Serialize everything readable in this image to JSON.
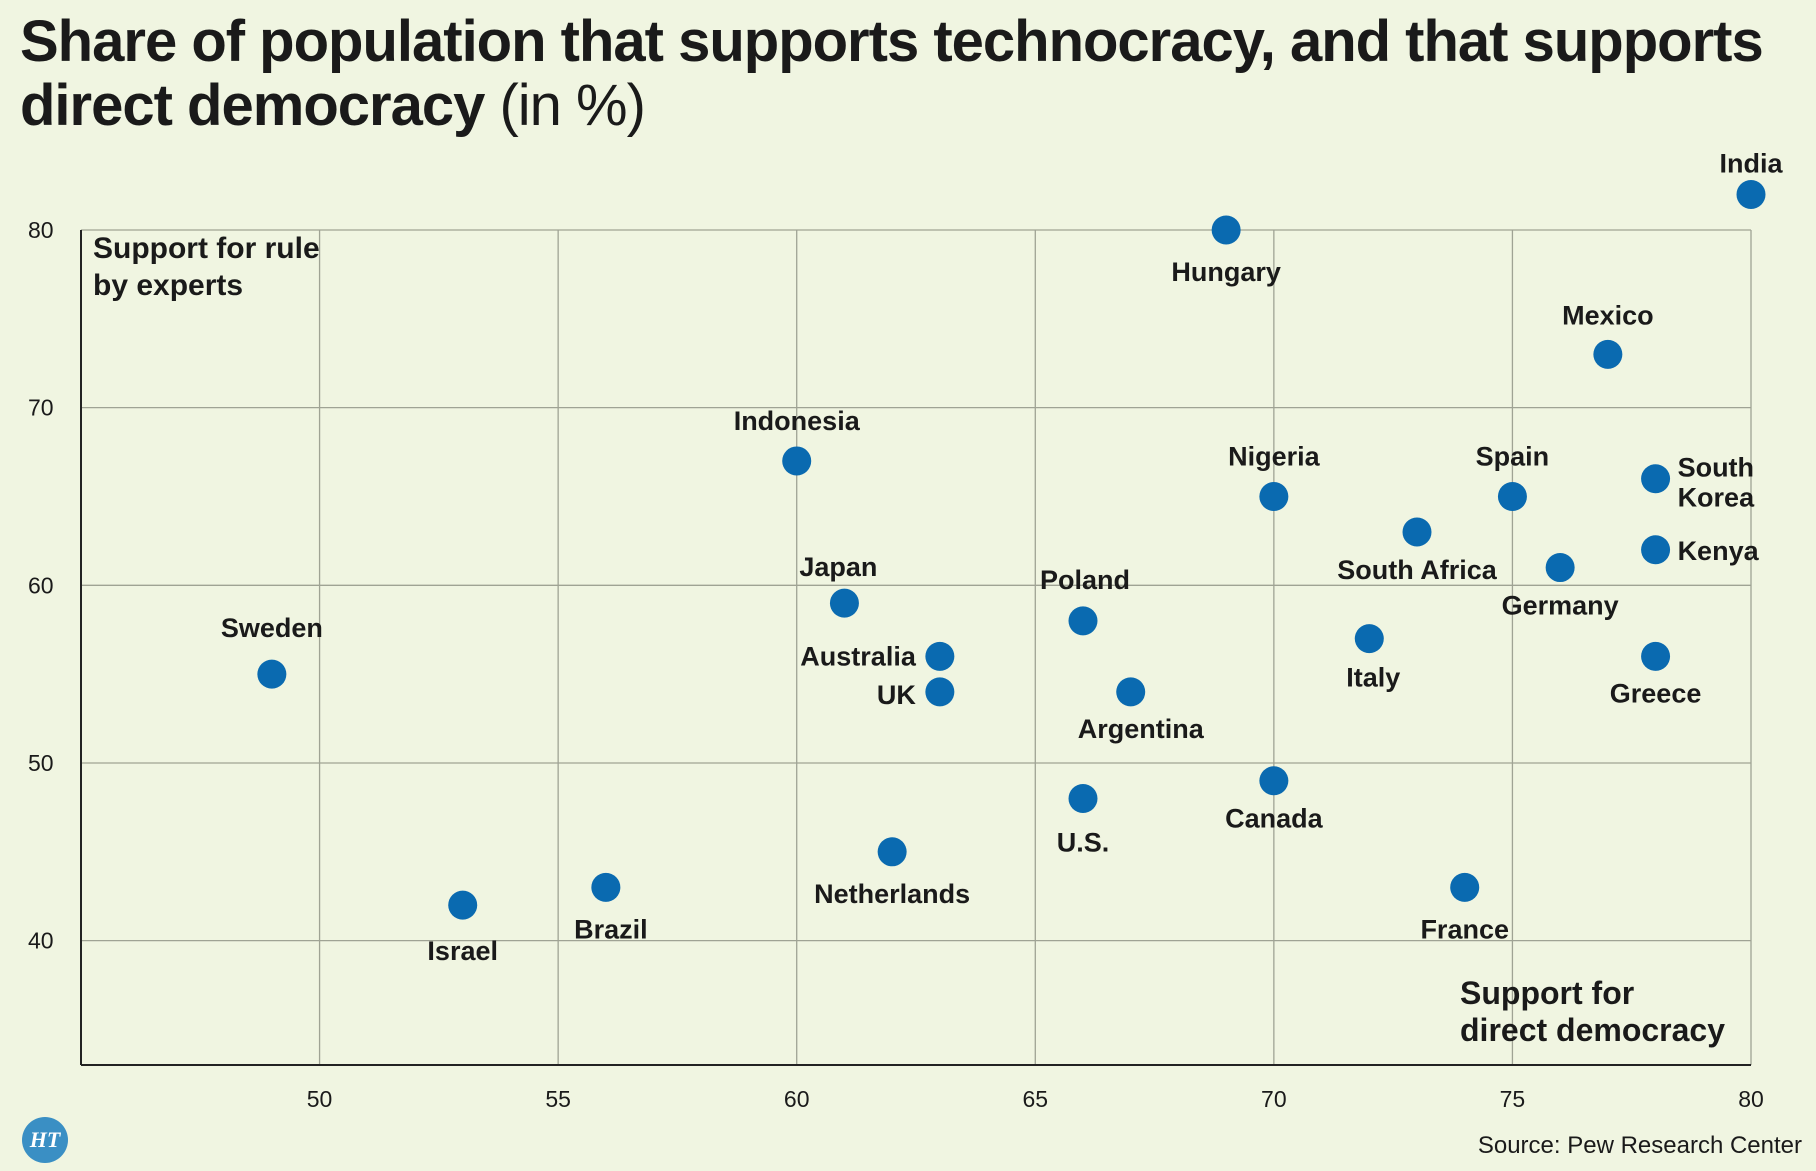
{
  "title": {
    "main": "Share of population that supports technocracy, and that supports direct democracy",
    "unit": "(in %)"
  },
  "source": "Source: Pew Research Center",
  "logo_text": "HT",
  "colors": {
    "background": "#f0f5e1",
    "point": "#0a6ab0",
    "grid": "#9fa394",
    "axis": "#222222",
    "text": "#1a1a1a"
  },
  "chart_data": {
    "type": "scatter",
    "xlabel": "Support for direct democracy",
    "ylabel": "Support for rule by experts",
    "xlim": [
      45,
      80
    ],
    "ylim": [
      33,
      80
    ],
    "xticks": [
      50,
      55,
      60,
      65,
      70,
      75,
      80
    ],
    "yticks": [
      40,
      50,
      60,
      70,
      80
    ],
    "grid": true,
    "points": [
      {
        "label": "India",
        "x": 80,
        "y": 82
      },
      {
        "label": "Hungary",
        "x": 69,
        "y": 80
      },
      {
        "label": "Mexico",
        "x": 77,
        "y": 73
      },
      {
        "label": "Indonesia",
        "x": 60,
        "y": 67
      },
      {
        "label": "Nigeria",
        "x": 70,
        "y": 65
      },
      {
        "label": "Spain",
        "x": 75,
        "y": 65
      },
      {
        "label": "South Korea",
        "x": 78,
        "y": 66
      },
      {
        "label": "South Africa",
        "x": 73,
        "y": 63
      },
      {
        "label": "Kenya",
        "x": 78,
        "y": 62
      },
      {
        "label": "Germany",
        "x": 76,
        "y": 61
      },
      {
        "label": "Japan",
        "x": 61,
        "y": 59
      },
      {
        "label": "Poland",
        "x": 66,
        "y": 58
      },
      {
        "label": "Italy",
        "x": 72,
        "y": 57
      },
      {
        "label": "Australia",
        "x": 63,
        "y": 56
      },
      {
        "label": "Greece",
        "x": 78,
        "y": 56
      },
      {
        "label": "Sweden",
        "x": 49,
        "y": 55
      },
      {
        "label": "UK",
        "x": 63,
        "y": 54
      },
      {
        "label": "Argentina",
        "x": 67,
        "y": 54
      },
      {
        "label": "Canada",
        "x": 70,
        "y": 49
      },
      {
        "label": "U.S.",
        "x": 66,
        "y": 48
      },
      {
        "label": "Netherlands",
        "x": 62,
        "y": 45
      },
      {
        "label": "Brazil",
        "x": 56,
        "y": 43
      },
      {
        "label": "France",
        "x": 74,
        "y": 43
      },
      {
        "label": "Israel",
        "x": 53,
        "y": 42
      }
    ]
  }
}
